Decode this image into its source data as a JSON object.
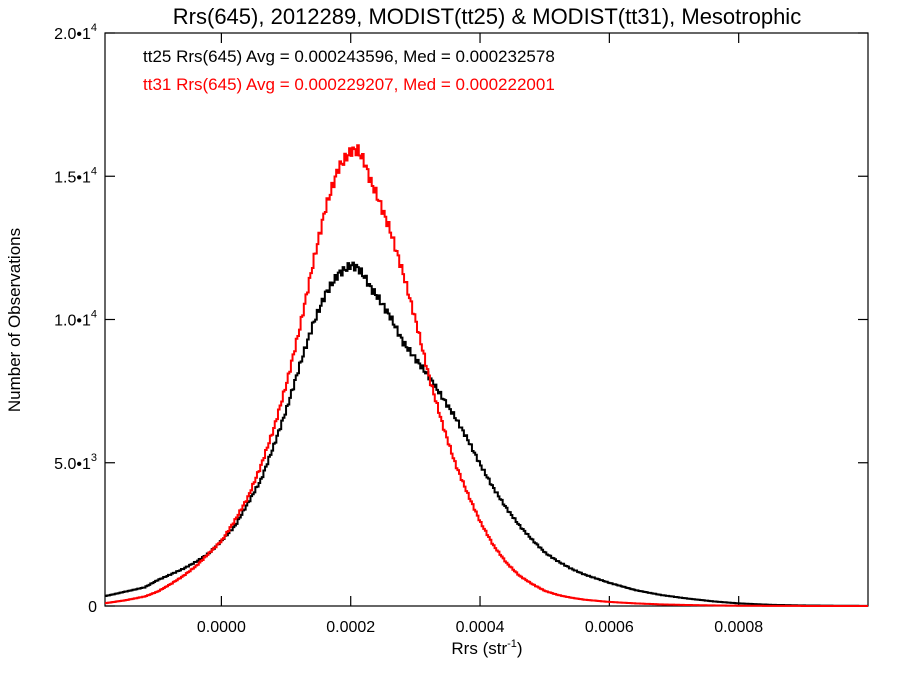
{
  "chart_data": {
    "type": "line",
    "title": "Rrs(645), 2012289, MODIST(tt25) & MODIST(tt31), Mesotrophic",
    "xlabel_base": "Rrs (str",
    "xlabel_sup": "-1",
    "xlabel_close": ")",
    "ylabel": "Number of Observations",
    "xlim": [
      -0.00018,
      0.001
    ],
    "ylim": [
      0,
      20000
    ],
    "x_ticks": [
      {
        "value": 0.0,
        "label": "0.0000"
      },
      {
        "value": 0.0002,
        "label": "0.0002"
      },
      {
        "value": 0.0004,
        "label": "0.0004"
      },
      {
        "value": 0.0006,
        "label": "0.0006"
      },
      {
        "value": 0.0008,
        "label": "0.0008"
      }
    ],
    "y_ticks": [
      {
        "value": 0,
        "base": "0",
        "sup": ""
      },
      {
        "value": 5000,
        "base": "5.0•1",
        "sup": "3"
      },
      {
        "value": 10000,
        "base": "1.0•1",
        "sup": "4"
      },
      {
        "value": 15000,
        "base": "1.5•1",
        "sup": "4"
      },
      {
        "value": 20000,
        "base": "2.0•1",
        "sup": "4"
      }
    ],
    "series": [
      {
        "name": "tt25 Rrs(645) Avg = 0.000243596, Med = 0.000232578",
        "color": "#000000",
        "x": [
          -0.00018,
          -0.00015,
          -0.00012,
          -0.0001,
          -8e-05,
          -6e-05,
          -4e-05,
          -2e-05,
          0.0,
          2e-05,
          4e-05,
          6e-05,
          8e-05,
          0.0001,
          0.00012,
          0.00014,
          0.00016,
          0.00018,
          0.0002,
          0.00021,
          0.00022,
          0.00023,
          0.00024,
          0.00026,
          0.00028,
          0.0003,
          0.00032,
          0.00034,
          0.00036,
          0.00038,
          0.0004,
          0.00042,
          0.00044,
          0.00046,
          0.00048,
          0.0005,
          0.00052,
          0.00054,
          0.00056,
          0.0006,
          0.00064,
          0.00068,
          0.00072,
          0.00076,
          0.0008,
          0.00085,
          0.0009,
          0.00095,
          0.001
        ],
        "y": [
          350,
          500,
          650,
          900,
          1100,
          1300,
          1550,
          1850,
          2300,
          2800,
          3600,
          4400,
          5600,
          6900,
          8400,
          9800,
          10900,
          11600,
          11900,
          11800,
          11500,
          11100,
          10800,
          10100,
          9200,
          8600,
          8000,
          7300,
          6600,
          5800,
          4900,
          4100,
          3400,
          2800,
          2300,
          1850,
          1550,
          1300,
          1100,
          800,
          550,
          380,
          260,
          160,
          90,
          40,
          20,
          10,
          5
        ]
      },
      {
        "name": "tt31 Rrs(645) Avg = 0.000229207, Med = 0.000222001",
        "color": "#ff0000",
        "x": [
          -0.00018,
          -0.00015,
          -0.00012,
          -0.0001,
          -8e-05,
          -6e-05,
          -4e-05,
          -2e-05,
          0.0,
          2e-05,
          4e-05,
          6e-05,
          8e-05,
          0.0001,
          0.00012,
          0.00014,
          0.00016,
          0.00018,
          0.0002,
          0.00021,
          0.00022,
          0.00023,
          0.00024,
          0.00026,
          0.00028,
          0.0003,
          0.00032,
          0.00034,
          0.00036,
          0.00038,
          0.0004,
          0.00042,
          0.00044,
          0.00046,
          0.00048,
          0.0005,
          0.00052,
          0.00054,
          0.00056,
          0.0006,
          0.00064,
          0.00068,
          0.00072,
          0.00076,
          0.0008,
          0.00085,
          0.0009,
          0.00095,
          0.001
        ],
        "y": [
          100,
          200,
          330,
          500,
          760,
          1050,
          1400,
          1850,
          2300,
          3000,
          3800,
          4900,
          6200,
          7800,
          9700,
          11900,
          13900,
          15300,
          15900,
          15900,
          15500,
          14800,
          14300,
          13100,
          11600,
          9900,
          8000,
          6400,
          5000,
          3900,
          2900,
          2100,
          1500,
          1050,
          760,
          520,
          380,
          290,
          220,
          140,
          90,
          55,
          35,
          20,
          10,
          5,
          2,
          1,
          0
        ]
      }
    ]
  }
}
